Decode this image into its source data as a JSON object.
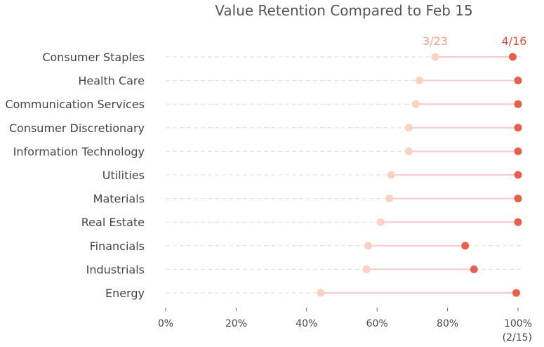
{
  "chart_data": {
    "type": "dumbbell",
    "title": "Value Retention Compared to Feb 15",
    "x_axis_note": "(2/15)",
    "xlim": [
      0,
      100
    ],
    "x_ticks": [
      "0%",
      "20%",
      "40%",
      "60%",
      "80%",
      "100%"
    ],
    "x_tick_values": [
      0,
      20,
      40,
      60,
      80,
      100
    ],
    "grid": "dashed horizontal row guides",
    "colors": {
      "start": "#f9d3c2",
      "end": "#e8604c",
      "connector": "#f6c9cc",
      "guide": "#dddddd",
      "start_label": "#f0a08a",
      "end_label": "#e0503c"
    },
    "series": [
      {
        "name": "3/23",
        "role": "start"
      },
      {
        "name": "4/16",
        "role": "end"
      }
    ],
    "categories": [
      "Consumer Staples",
      "Health Care",
      "Communication Services",
      "Consumer Discretionary",
      "Information Technology",
      "Utilities",
      "Materials",
      "Real Estate",
      "Financials",
      "Industrials",
      "Energy"
    ],
    "start_values": [
      76.5,
      72,
      71,
      69,
      69,
      64,
      63.5,
      61,
      57.5,
      57,
      44
    ],
    "end_values": [
      98.5,
      100,
      100,
      100,
      100,
      100,
      100,
      100,
      85,
      87.5,
      99.5
    ]
  }
}
